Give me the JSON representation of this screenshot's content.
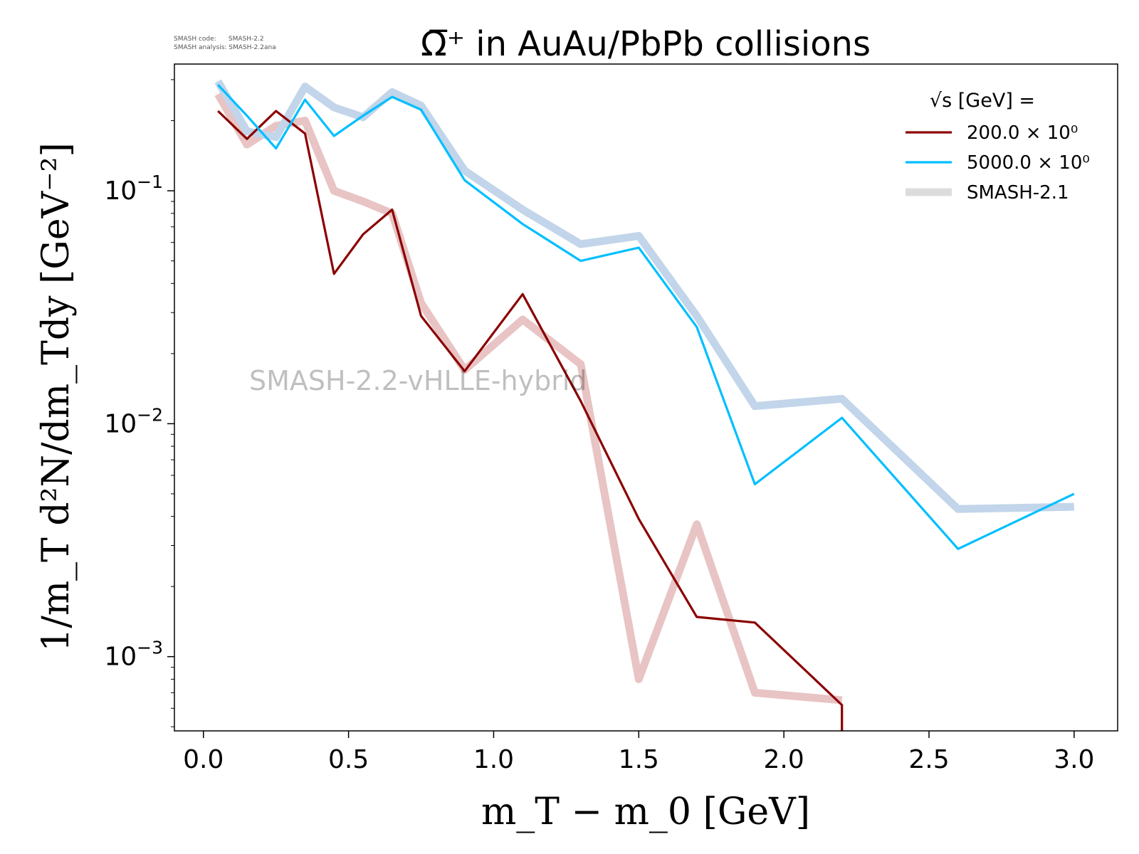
{
  "meta": {
    "line1": "SMASH code:      SMASH-2.2",
    "line2": "SMASH analysis: SMASH-2.2ana"
  },
  "watermark": "SMASH-2.2-vHLLE-hybrid",
  "chart_data": {
    "type": "line",
    "title": "Ω̅⁺ in AuAu/PbPb collisions",
    "xlabel": "m_T − m_0 [GeV]",
    "ylabel": "1/m_T d²N/dm_Tdy [GeV⁻²]",
    "xlim": [
      -0.1,
      3.15
    ],
    "ylim": [
      0.00048,
      0.35
    ],
    "yscale": "log",
    "grid": false,
    "legend": {
      "placement": "top-right",
      "title": "√s  [GeV] =",
      "entries": [
        "200.0 × 10⁰",
        "5000.0 × 10⁰",
        "SMASH-2.1"
      ]
    },
    "x_ticks": [
      0.0,
      0.5,
      1.0,
      1.5,
      2.0,
      2.5,
      3.0
    ],
    "x_tick_labels": [
      "0.0",
      "0.5",
      "1.0",
      "1.5",
      "2.0",
      "2.5",
      "3.0"
    ],
    "y_ticks": [
      0.001,
      0.01,
      0.1
    ],
    "y_tick_labels": [
      {
        "base": "10",
        "exp": "−3"
      },
      {
        "base": "10",
        "exp": "−2"
      },
      {
        "base": "10",
        "exp": "−1"
      }
    ],
    "series": [
      {
        "name": "200.0 × 10⁰",
        "color": "#8b0000",
        "style": "thin",
        "x": [
          0.05,
          0.15,
          0.25,
          0.35,
          0.45,
          0.55,
          0.65,
          0.75,
          0.9,
          1.1,
          1.3,
          1.5,
          1.7,
          1.9,
          2.2,
          2.2
        ],
        "y": [
          0.22,
          0.167,
          0.22,
          0.176,
          0.044,
          0.065,
          0.083,
          0.029,
          0.0168,
          0.036,
          0.0125,
          0.0039,
          0.00148,
          0.0014,
          0.00062,
          0.00045
        ]
      },
      {
        "name": "5000.0 × 10⁰",
        "color": "#00bfff",
        "style": "thin",
        "x": [
          0.05,
          0.15,
          0.25,
          0.35,
          0.45,
          0.55,
          0.65,
          0.75,
          0.9,
          1.1,
          1.3,
          1.5,
          1.7,
          1.9,
          2.2,
          2.6,
          3.0
        ],
        "y": [
          0.285,
          0.21,
          0.152,
          0.246,
          0.172,
          0.21,
          0.253,
          0.223,
          0.111,
          0.072,
          0.05,
          0.057,
          0.026,
          0.0055,
          0.0106,
          0.0029,
          0.005
        ]
      },
      {
        "name": "SMASH-2.1",
        "color": "#e8c4c4",
        "style": "thick",
        "x": [
          0.05,
          0.15,
          0.25,
          0.35,
          0.45,
          0.55,
          0.65,
          0.75,
          0.9,
          1.1,
          1.3,
          1.5,
          1.7,
          1.9,
          2.2
        ],
        "y": [
          0.26,
          0.158,
          0.19,
          0.2,
          0.1,
          0.09,
          0.08,
          0.033,
          0.017,
          0.028,
          0.018,
          0.0008,
          0.0037,
          0.0007,
          0.00065
        ]
      },
      {
        "name": "SMASH-2.1",
        "color": "#c2d5ea",
        "style": "thick",
        "x": [
          0.05,
          0.15,
          0.25,
          0.35,
          0.45,
          0.55,
          0.65,
          0.75,
          0.9,
          1.1,
          1.3,
          1.5,
          1.7,
          1.9,
          2.2,
          2.6,
          3.0
        ],
        "y": [
          0.295,
          0.18,
          0.17,
          0.28,
          0.228,
          0.207,
          0.265,
          0.232,
          0.122,
          0.083,
          0.059,
          0.064,
          0.029,
          0.0119,
          0.0128,
          0.0043,
          0.0044
        ]
      }
    ]
  }
}
